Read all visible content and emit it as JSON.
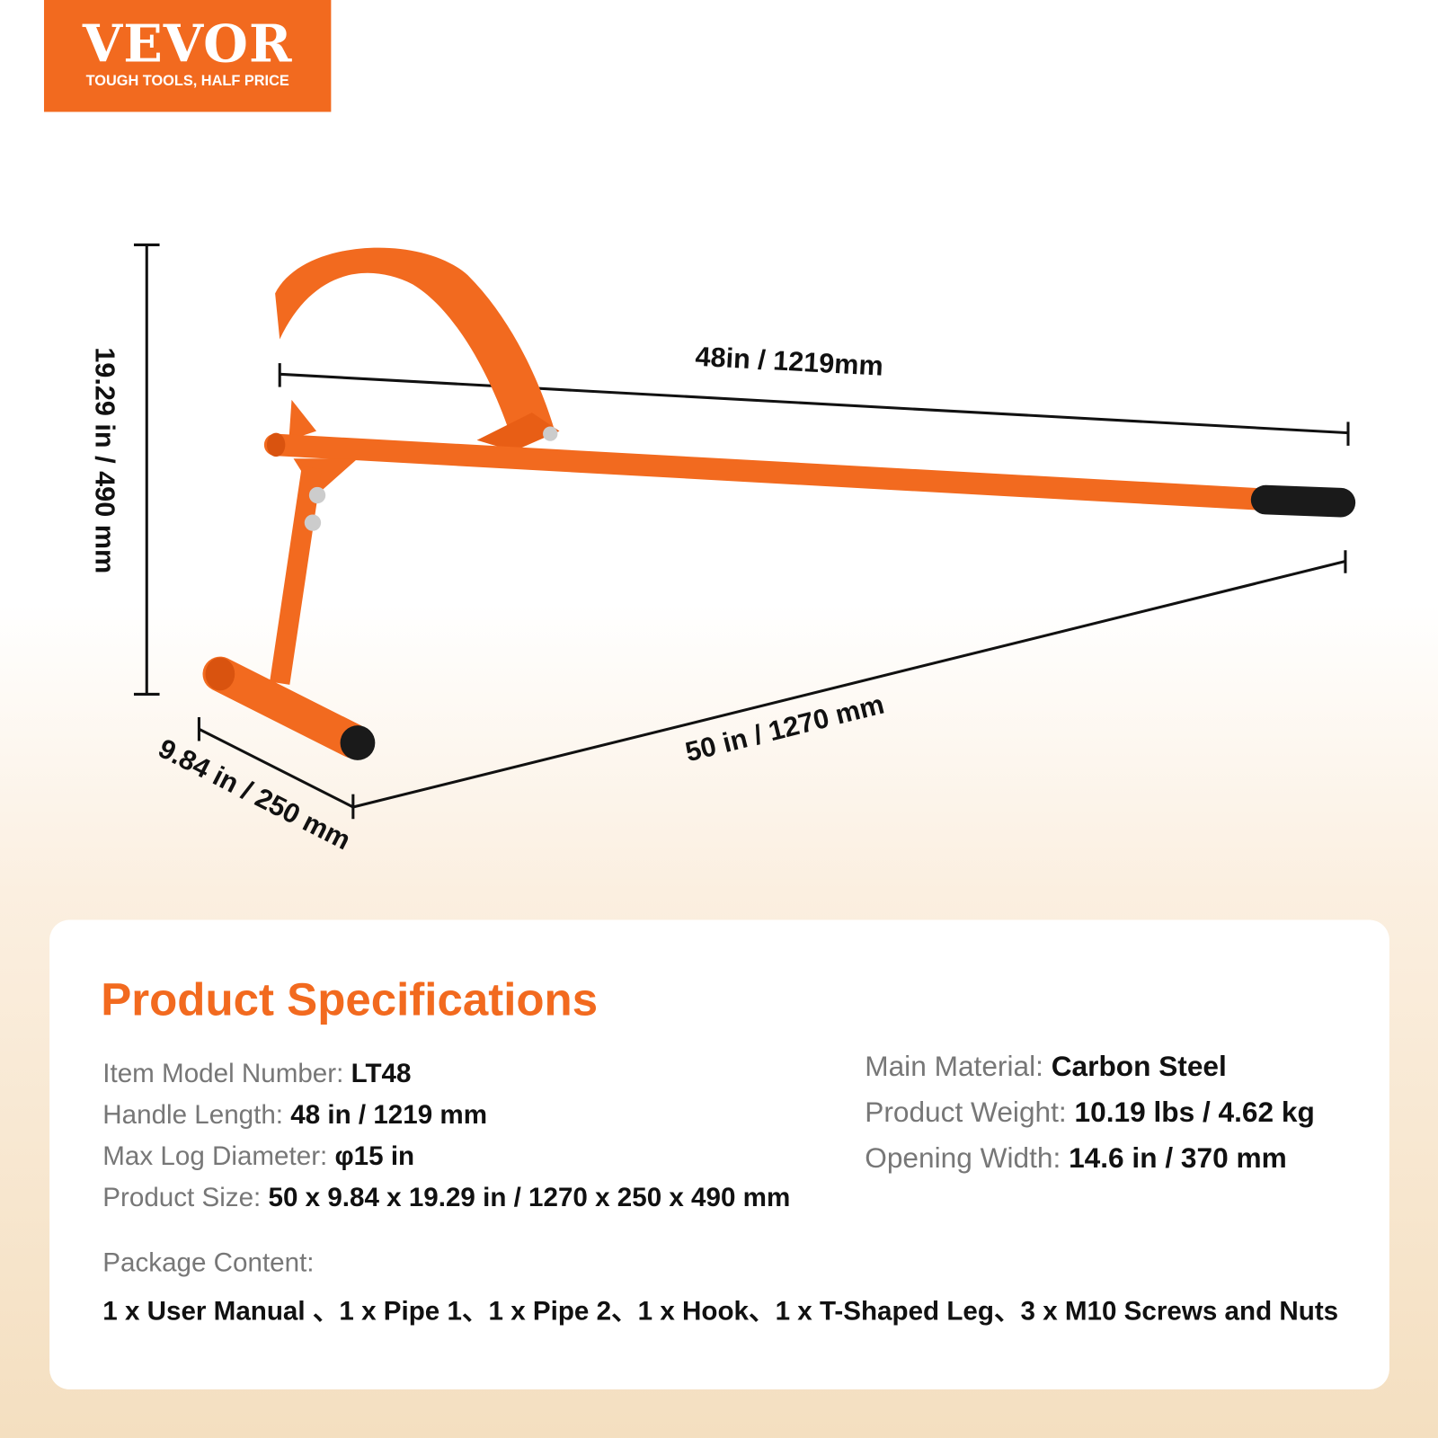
{
  "logo": {
    "brand": "VEVOR",
    "tagline": "TOUGH TOOLS, HALF PRICE",
    "color": "#f26a1f"
  },
  "dimensions": {
    "handle": "48in / 1219mm",
    "height": "19.29 in / 490 mm",
    "length": "50 in / 1270 mm",
    "width": "9.84 in / 250 mm"
  },
  "specs": {
    "title": "Product Specifications",
    "left": [
      {
        "label": "Item Model Number:",
        "value": "LT48"
      },
      {
        "label": "Handle Length:",
        "value": "48 in / 1219 mm"
      },
      {
        "label": "Max Log Diameter:",
        "value": "φ15 in"
      },
      {
        "label": "Product Size:",
        "value": "50 x 9.84 x 19.29 in / 1270 x 250 x 490 mm"
      }
    ],
    "right": [
      {
        "label": "Main Material:",
        "value": "Carbon Steel"
      },
      {
        "label": "Product Weight:",
        "value": "10.19 lbs / 4.62 kg"
      },
      {
        "label": "Opening Width:",
        "value": "14.6 in / 370 mm"
      }
    ],
    "package_label": "Package Content:",
    "package_value": "1 x User Manual 、1 x Pipe 1、1 x Pipe 2、1 x Hook、1 x T-Shaped Leg、3 x M10 Screws and Nuts"
  }
}
